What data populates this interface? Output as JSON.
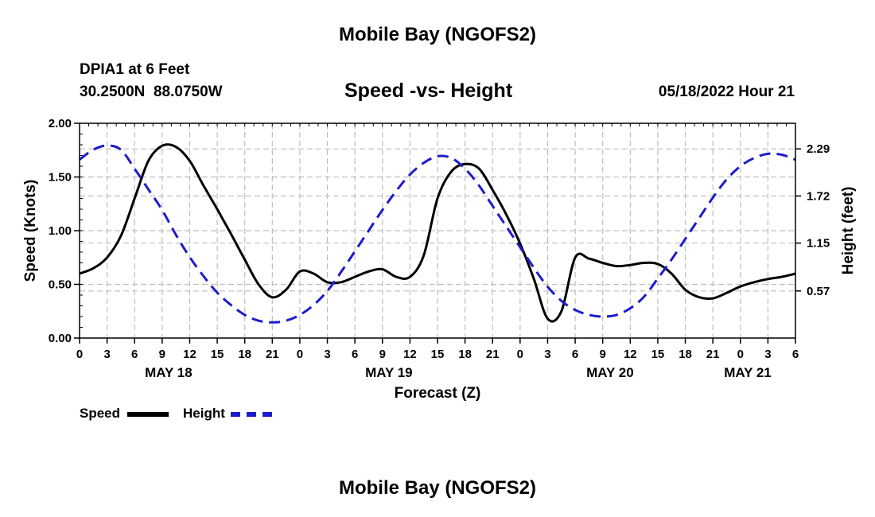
{
  "header": {
    "top_title": "Mobile Bay (NGOFS2)",
    "station_line": "DPIA1 at 6 Feet",
    "coords": "30.2500N  88.0750W",
    "plot_title": "Speed -vs- Height",
    "run_time": "05/18/2022 Hour 21",
    "bottom_title": "Mobile Bay (NGOFS2)"
  },
  "legend": {
    "speed_label": "Speed",
    "height_label": "Height"
  },
  "chart_data": {
    "type": "line",
    "title": "Speed -vs- Height",
    "xlabel": "Forecast (Z)",
    "ylabel": "Speed (Knots)",
    "y2label": "Height (feet)",
    "grid": true,
    "x_range_hours": [
      0,
      78
    ],
    "ylim": [
      0,
      2.0
    ],
    "y2lim": [
      0,
      2.6
    ],
    "y_ticks": [
      "0.00",
      "0.50",
      "1.00",
      "1.50",
      "2.00"
    ],
    "y_tick_values": [
      0,
      0.5,
      1.0,
      1.5,
      2.0
    ],
    "y2_ticks": [
      "0.57",
      "1.15",
      "1.72",
      "2.29"
    ],
    "y2_tick_values": [
      0.57,
      1.15,
      1.72,
      2.29
    ],
    "x_tick_labels": [
      "0",
      "3",
      "6",
      "9",
      "12",
      "15",
      "18",
      "21",
      "0",
      "3",
      "6",
      "9",
      "12",
      "15",
      "18",
      "21",
      "0",
      "3",
      "6",
      "9",
      "12",
      "15",
      "18",
      "21",
      "0",
      "3",
      "6"
    ],
    "x_tick_hours": [
      0,
      3,
      6,
      9,
      12,
      15,
      18,
      21,
      24,
      27,
      30,
      33,
      36,
      39,
      42,
      45,
      48,
      51,
      54,
      57,
      60,
      63,
      66,
      69,
      72,
      75,
      78
    ],
    "day_labels": [
      "MAY 18",
      "MAY 19",
      "MAY 20",
      "MAY 21"
    ],
    "day_label_hours": [
      9.7,
      33.7,
      57.8,
      72.8
    ],
    "colors": {
      "speed": "#000000",
      "height": "#1c1ccc"
    },
    "series": [
      {
        "name": "Speed",
        "axis": "left",
        "style": "solid",
        "x": [
          0,
          1.5,
          3,
          4.5,
          6,
          7.5,
          9,
          10.5,
          12,
          13.5,
          15,
          16.5,
          18,
          19.5,
          21,
          22.5,
          24,
          25.5,
          27,
          28.5,
          30,
          31.5,
          33,
          34.5,
          36,
          37.5,
          39,
          40.5,
          42,
          43.5,
          45,
          46.5,
          48,
          49.5,
          51,
          52.5,
          54,
          55.5,
          57,
          58.5,
          60,
          61.5,
          63,
          64.5,
          66,
          67.5,
          69,
          70.5,
          72,
          73.5,
          75,
          76.5,
          78
        ],
        "values": [
          0.6,
          0.65,
          0.75,
          0.95,
          1.3,
          1.65,
          1.79,
          1.78,
          1.65,
          1.42,
          1.2,
          0.97,
          0.73,
          0.5,
          0.38,
          0.45,
          0.62,
          0.6,
          0.52,
          0.52,
          0.57,
          0.62,
          0.64,
          0.57,
          0.57,
          0.77,
          1.3,
          1.55,
          1.62,
          1.58,
          1.38,
          1.15,
          0.88,
          0.55,
          0.18,
          0.25,
          0.75,
          0.74,
          0.7,
          0.67,
          0.68,
          0.7,
          0.69,
          0.6,
          0.45,
          0.38,
          0.37,
          0.42,
          0.48,
          0.52,
          0.55,
          0.57,
          0.6
        ]
      },
      {
        "name": "Height",
        "axis": "right",
        "style": "dashed",
        "x": [
          0,
          1.5,
          3,
          4.5,
          6,
          7.5,
          9,
          10.5,
          12,
          13.5,
          15,
          16.5,
          18,
          19.5,
          21,
          22.5,
          24,
          25.5,
          27,
          28.5,
          30,
          31.5,
          33,
          34.5,
          36,
          37.5,
          39,
          40.5,
          42,
          43.5,
          45,
          46.5,
          48,
          49.5,
          51,
          52.5,
          54,
          55.5,
          57,
          58.5,
          60,
          61.5,
          63,
          64.5,
          66,
          67.5,
          69,
          70.5,
          72,
          73.5,
          75,
          76.5,
          78
        ],
        "values": [
          2.16,
          2.28,
          2.33,
          2.28,
          2.05,
          1.8,
          1.55,
          1.25,
          0.98,
          0.75,
          0.55,
          0.4,
          0.28,
          0.21,
          0.19,
          0.21,
          0.28,
          0.4,
          0.57,
          0.8,
          1.05,
          1.3,
          1.55,
          1.78,
          1.98,
          2.12,
          2.2,
          2.18,
          2.05,
          1.85,
          1.6,
          1.35,
          1.1,
          0.85,
          0.62,
          0.45,
          0.34,
          0.28,
          0.26,
          0.28,
          0.36,
          0.5,
          0.72,
          0.95,
          1.2,
          1.45,
          1.7,
          1.92,
          2.08,
          2.18,
          2.23,
          2.22,
          2.16
        ]
      }
    ]
  }
}
